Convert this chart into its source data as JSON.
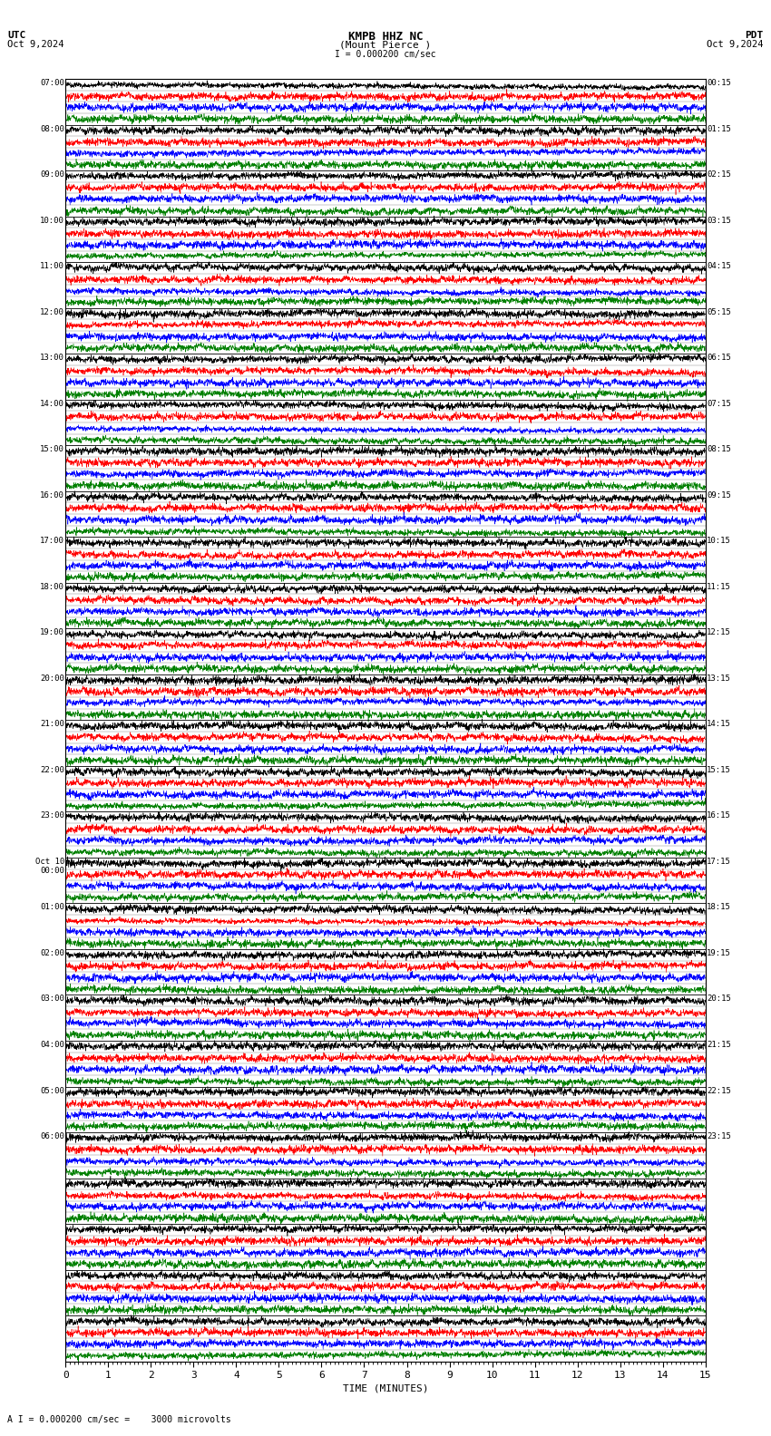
{
  "title_station": "KMPB HHZ NC",
  "title_location": "(Mount Pierce )",
  "utc_label": "UTC",
  "pdt_label": "PDT",
  "date_left": "Oct 9,2024",
  "date_right": "Oct 9,2024",
  "scale_text": "I = 0.000200 cm/sec",
  "footer_text": "A I = 0.000200 cm/sec =    3000 microvolts",
  "xlabel": "TIME (MINUTES)",
  "bg_color": "#ffffff",
  "trace_colors": [
    "black",
    "red",
    "blue",
    "green"
  ],
  "num_rows": 28,
  "traces_per_row": 4,
  "left_labels_utc": [
    "07:00",
    "08:00",
    "09:00",
    "10:00",
    "11:00",
    "12:00",
    "13:00",
    "14:00",
    "15:00",
    "16:00",
    "17:00",
    "18:00",
    "19:00",
    "20:00",
    "21:00",
    "22:00",
    "23:00",
    "Oct 10\n00:00",
    "01:00",
    "02:00",
    "03:00",
    "04:00",
    "05:00",
    "06:00",
    "",
    "",
    "",
    ""
  ],
  "right_labels_pdt": [
    "00:15",
    "01:15",
    "02:15",
    "03:15",
    "04:15",
    "05:15",
    "06:15",
    "07:15",
    "08:15",
    "09:15",
    "10:15",
    "11:15",
    "12:15",
    "13:15",
    "14:15",
    "15:15",
    "16:15",
    "17:15",
    "18:15",
    "19:15",
    "20:15",
    "21:15",
    "22:15",
    "23:15",
    "",
    "",
    "",
    ""
  ],
  "xmin": 0,
  "xmax": 15,
  "xticks": [
    0,
    1,
    2,
    3,
    4,
    5,
    6,
    7,
    8,
    9,
    10,
    11,
    12,
    13,
    14,
    15
  ],
  "noise_seed": 42
}
